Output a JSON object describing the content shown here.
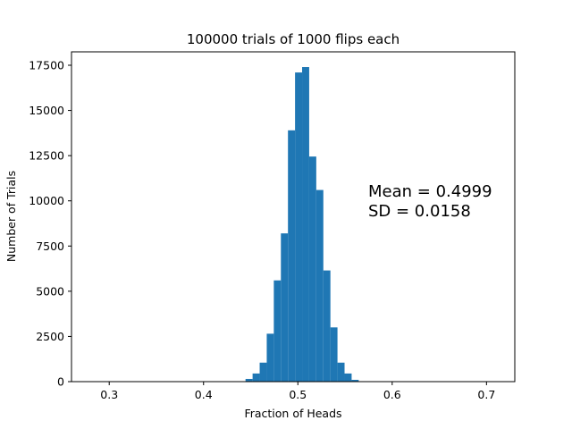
{
  "chart_data": {
    "type": "bar",
    "subtype": "histogram",
    "title": "100000 trials of 1000 flips each",
    "xlabel": "Fraction of Heads",
    "ylabel": "Number of Trials",
    "xlim": [
      0.26,
      0.73
    ],
    "ylim": [
      0,
      17500
    ],
    "xticks": [
      0.3,
      0.4,
      0.5,
      0.6,
      0.7
    ],
    "yticks": [
      0,
      2500,
      5000,
      7500,
      10000,
      12500,
      15000,
      17500
    ],
    "grid": false,
    "color": "#1f77b4",
    "bin_width": 0.0075,
    "bins": [
      {
        "x0": 0.4445,
        "x1": 0.452,
        "count": 150
      },
      {
        "x0": 0.452,
        "x1": 0.4595,
        "count": 450
      },
      {
        "x0": 0.4595,
        "x1": 0.467,
        "count": 1050
      },
      {
        "x0": 0.467,
        "x1": 0.4745,
        "count": 2650
      },
      {
        "x0": 0.4745,
        "x1": 0.482,
        "count": 5600
      },
      {
        "x0": 0.482,
        "x1": 0.4895,
        "count": 8200
      },
      {
        "x0": 0.4895,
        "x1": 0.497,
        "count": 13900
      },
      {
        "x0": 0.497,
        "x1": 0.5045,
        "count": 17100
      },
      {
        "x0": 0.5045,
        "x1": 0.512,
        "count": 17400
      },
      {
        "x0": 0.512,
        "x1": 0.5195,
        "count": 12450
      },
      {
        "x0": 0.5195,
        "x1": 0.527,
        "count": 10600
      },
      {
        "x0": 0.527,
        "x1": 0.5345,
        "count": 6150
      },
      {
        "x0": 0.5345,
        "x1": 0.542,
        "count": 3000
      },
      {
        "x0": 0.542,
        "x1": 0.5495,
        "count": 1050
      },
      {
        "x0": 0.5495,
        "x1": 0.557,
        "count": 450
      },
      {
        "x0": 0.557,
        "x1": 0.5645,
        "count": 100
      }
    ],
    "annotations": [
      {
        "text": "Mean = 0.4999"
      },
      {
        "text": "SD = 0.0158"
      }
    ]
  }
}
